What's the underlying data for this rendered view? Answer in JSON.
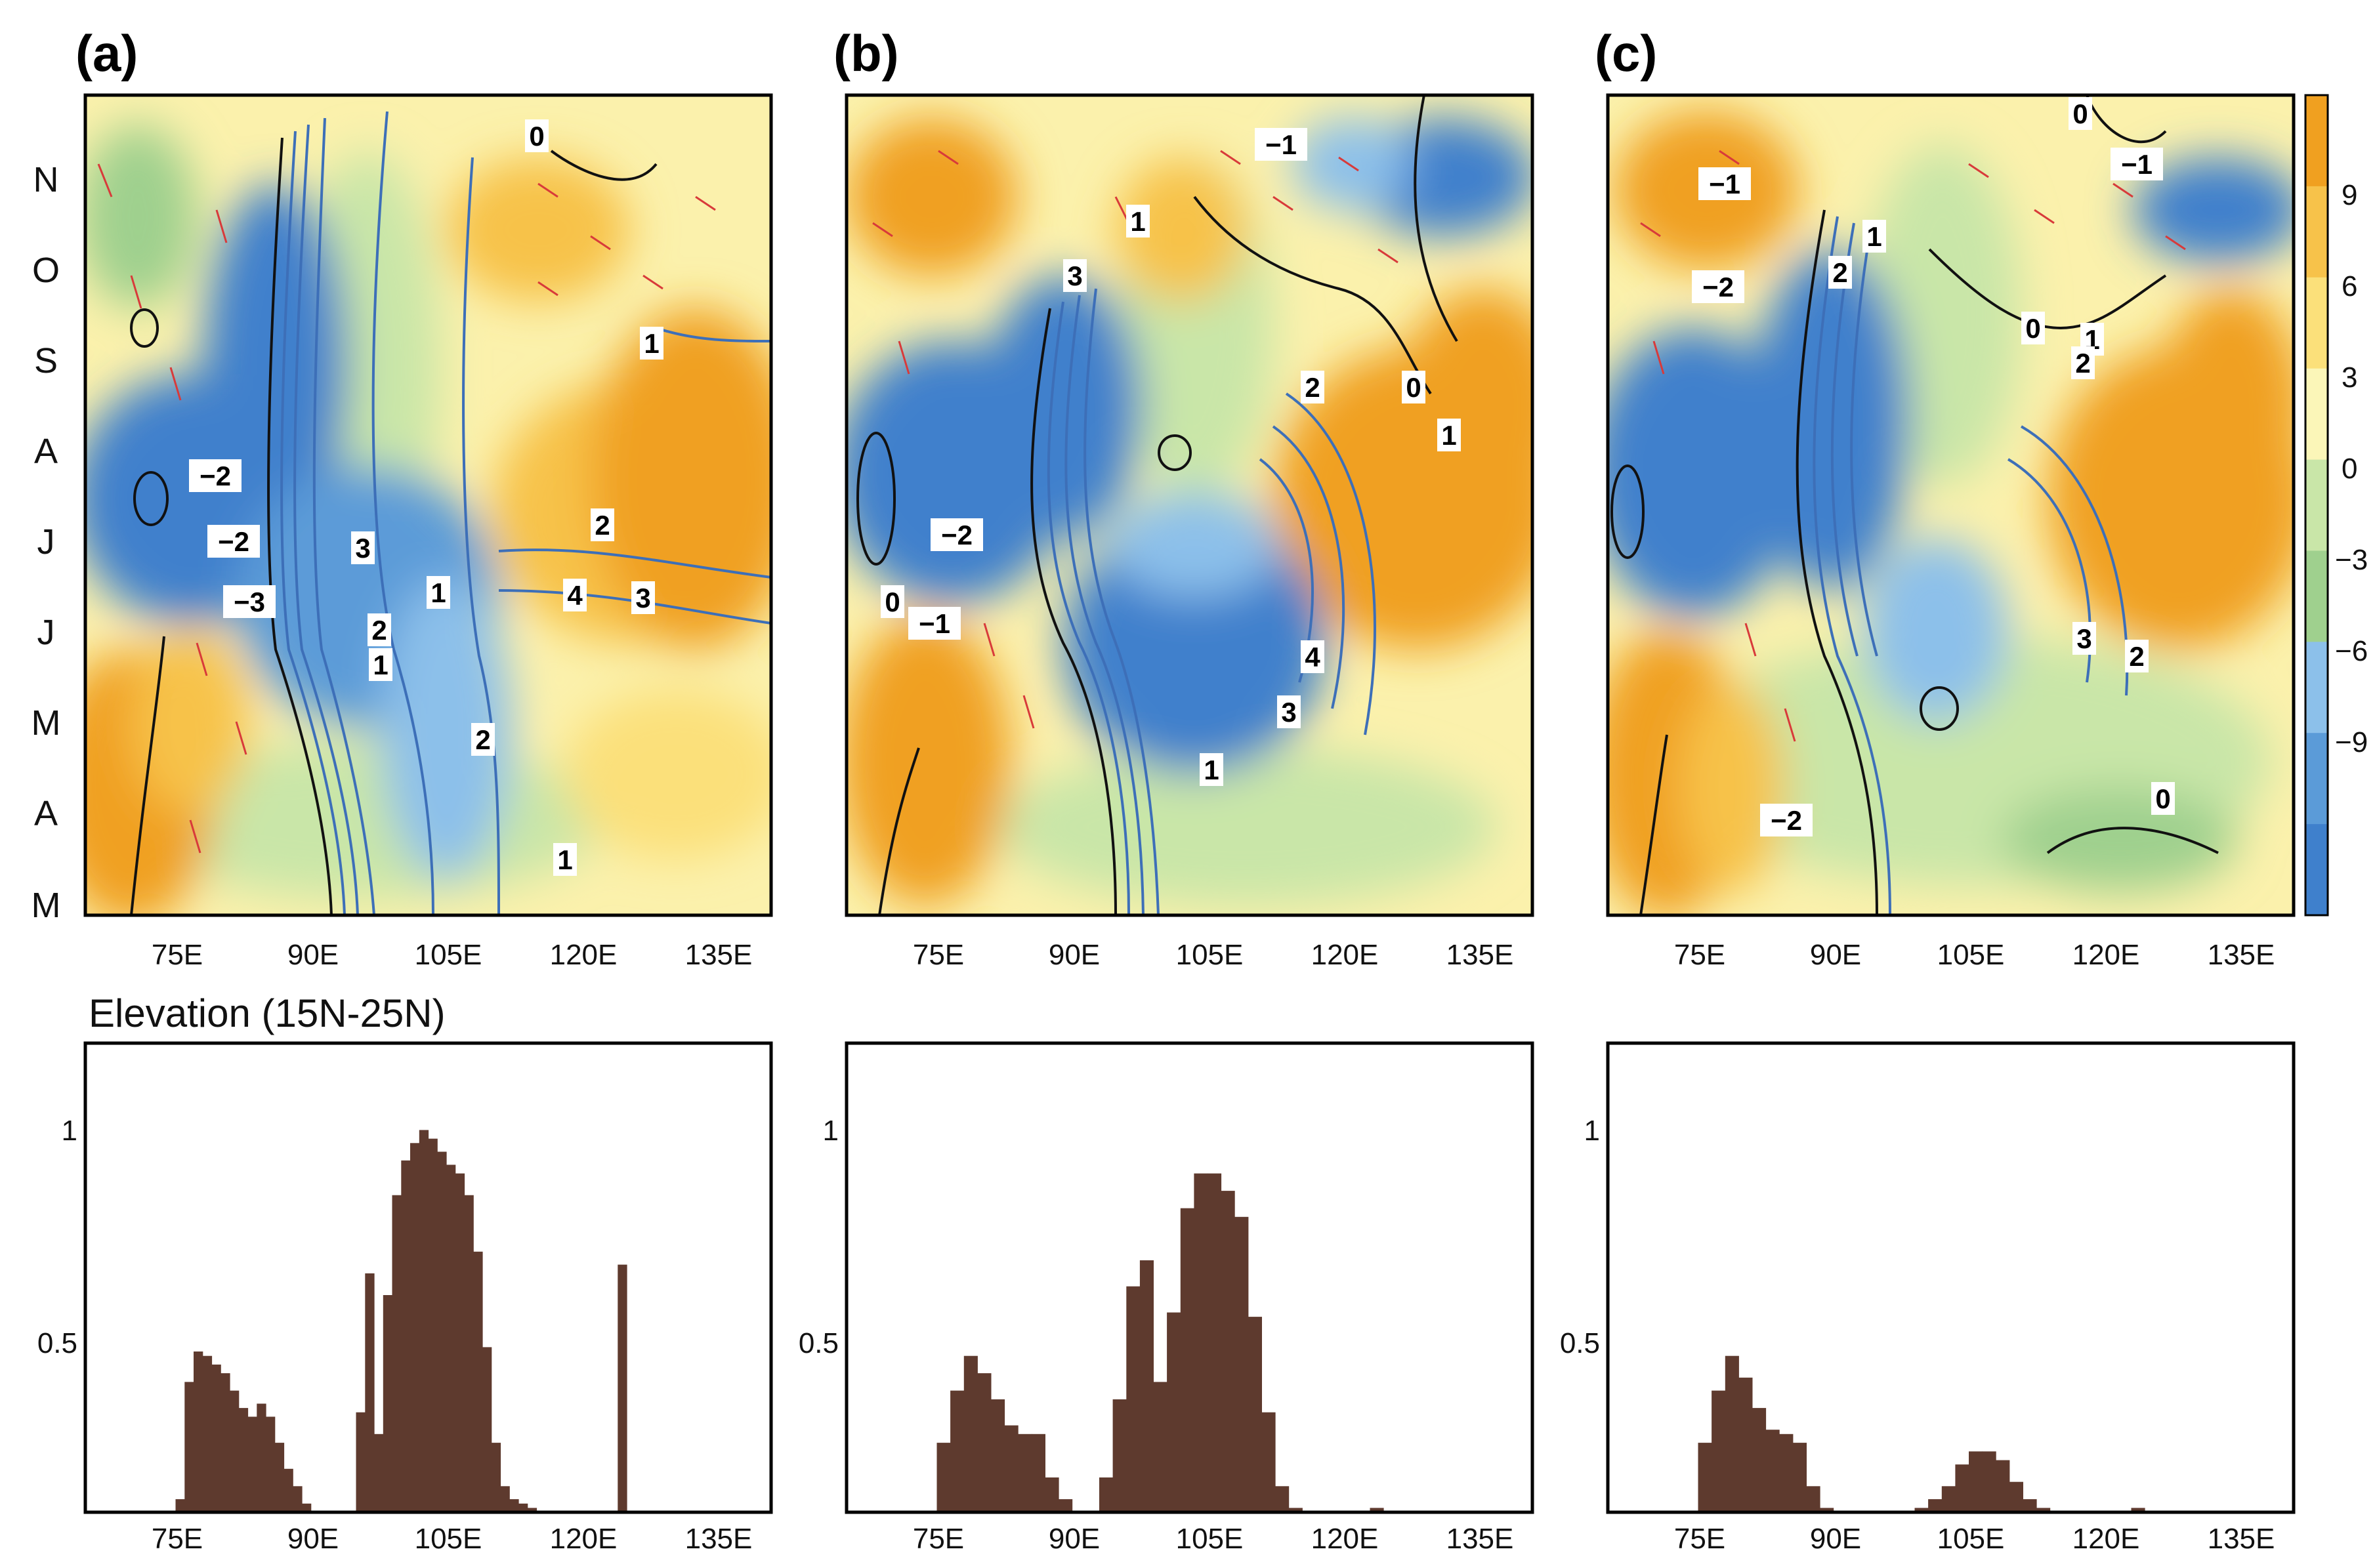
{
  "figure": {
    "panel_labels": [
      "(a)",
      "(b)",
      "(c)"
    ],
    "elevation_title": "Elevation (15N-25N)",
    "months": [
      "M",
      "A",
      "M",
      "J",
      "J",
      "A",
      "S",
      "O",
      "N"
    ],
    "lon_ticks": [
      "75E",
      "90E",
      "105E",
      "120E",
      "135E"
    ],
    "colorbar": {
      "ticks": [
        "9",
        "6",
        "3",
        "0",
        "−3",
        "−6",
        "−9"
      ],
      "colors": [
        "#f0a020",
        "#f7c24a",
        "#fbe07a",
        "#fbf6b8",
        "#c9e6a8",
        "#9fd08e",
        "#8cc0ea",
        "#5b9bd8",
        "#3f80cc"
      ]
    }
  },
  "contour_labels": {
    "a": [
      "0",
      "1",
      "−2",
      "−2",
      "−3",
      "3",
      "1",
      "2",
      "1",
      "2",
      "4",
      "3",
      "2",
      "1"
    ],
    "b": [
      "−1",
      "1",
      "3",
      "2",
      "0",
      "1",
      "−2",
      "0",
      "−1",
      "4",
      "3",
      "1"
    ],
    "c": [
      "0",
      "−1",
      "−1",
      "1",
      "−2",
      "2",
      "0",
      "1",
      "2",
      "3",
      "2",
      "−2",
      "0"
    ]
  },
  "chart_data": [
    {
      "type": "heatmap",
      "panel": "(a)",
      "xlabel": "",
      "ylabel": "",
      "x_ticks": [
        "75E",
        "90E",
        "105E",
        "120E",
        "135E"
      ],
      "xlim": [
        62,
        138
      ],
      "y_ticks": [
        "M",
        "A",
        "M",
        "J",
        "J",
        "A",
        "S",
        "O",
        "N"
      ],
      "colorbar_ticks": [
        -9,
        -6,
        -3,
        0,
        3,
        6,
        9
      ],
      "contour_labels": [
        "0",
        "1",
        "-2",
        "-2",
        "-3",
        "3",
        "1",
        "2",
        "1",
        "2",
        "4",
        "3",
        "2",
        "1"
      ]
    },
    {
      "type": "heatmap",
      "panel": "(b)",
      "xlabel": "",
      "ylabel": "",
      "x_ticks": [
        "75E",
        "90E",
        "105E",
        "120E",
        "135E"
      ],
      "xlim": [
        62,
        138
      ],
      "y_ticks": [
        "M",
        "A",
        "M",
        "J",
        "J",
        "A",
        "S",
        "O",
        "N"
      ],
      "colorbar_ticks": [
        -9,
        -6,
        -3,
        0,
        3,
        6,
        9
      ],
      "contour_labels": [
        "-1",
        "1",
        "3",
        "2",
        "0",
        "1",
        "-2",
        "0",
        "-1",
        "4",
        "3",
        "1"
      ]
    },
    {
      "type": "heatmap",
      "panel": "(c)",
      "xlabel": "",
      "ylabel": "",
      "x_ticks": [
        "75E",
        "90E",
        "105E",
        "120E",
        "135E"
      ],
      "xlim": [
        62,
        138
      ],
      "y_ticks": [
        "M",
        "A",
        "M",
        "J",
        "J",
        "A",
        "S",
        "O",
        "N"
      ],
      "colorbar_ticks": [
        -9,
        -6,
        -3,
        0,
        3,
        6,
        9
      ],
      "contour_labels": [
        "0",
        "-1",
        "-1",
        "1",
        "-2",
        "2",
        "0",
        "1",
        "2",
        "3",
        "2",
        "-2",
        "0"
      ]
    },
    {
      "type": "bar",
      "panel": "(a) elevation",
      "title": "Elevation (15N-25N)",
      "xlim": [
        62,
        138
      ],
      "ylim": [
        0.12,
        1.2
      ],
      "x_ticks": [
        "75E",
        "90E",
        "105E",
        "120E",
        "135E"
      ],
      "y_ticks": [
        "0.5",
        "1"
      ],
      "x": [
        72,
        73,
        74,
        75,
        76,
        77,
        78,
        79,
        80,
        81,
        82,
        83,
        84,
        85,
        86,
        87,
        88,
        89,
        90,
        91,
        92,
        93,
        94,
        95,
        96,
        97,
        98,
        99,
        100,
        101,
        102,
        103,
        104,
        105,
        106,
        107,
        108,
        109,
        110,
        111,
        112,
        113,
        114,
        115,
        116,
        117,
        118,
        119,
        120,
        121,
        122
      ],
      "values": [
        0.15,
        0.42,
        0.49,
        0.48,
        0.46,
        0.44,
        0.4,
        0.36,
        0.34,
        0.37,
        0.34,
        0.28,
        0.22,
        0.18,
        0.14,
        0.12,
        0.12,
        0.12,
        0.12,
        0.12,
        0.35,
        0.67,
        0.3,
        0.62,
        0.85,
        0.93,
        0.97,
        1.0,
        0.98,
        0.95,
        0.92,
        0.9,
        0.85,
        0.72,
        0.5,
        0.28,
        0.18,
        0.15,
        0.14,
        0.13,
        0.12,
        0.12,
        0.12,
        0.12,
        0.12,
        0.12,
        0.12,
        0.12,
        0.12,
        0.69,
        0.12
      ]
    },
    {
      "type": "bar",
      "panel": "(b) elevation",
      "xlim": [
        62,
        138
      ],
      "ylim": [
        0.12,
        1.2
      ],
      "x_ticks": [
        "75E",
        "90E",
        "105E",
        "120E",
        "135E"
      ],
      "y_ticks": [
        "0.5",
        "1"
      ],
      "x": [
        72,
        73.5,
        75,
        76.5,
        78,
        79.5,
        81,
        82.5,
        84,
        85.5,
        87,
        88.5,
        90,
        91.5,
        93,
        94.5,
        96,
        97.5,
        99,
        100.5,
        102,
        103.5,
        105,
        106.5,
        108,
        109.5,
        111,
        112.5,
        114,
        115.5,
        117,
        118.5,
        120,
        121.5
      ],
      "values": [
        0.28,
        0.4,
        0.48,
        0.44,
        0.38,
        0.32,
        0.3,
        0.3,
        0.2,
        0.15,
        0.12,
        0.12,
        0.2,
        0.38,
        0.64,
        0.7,
        0.42,
        0.58,
        0.82,
        0.9,
        0.9,
        0.86,
        0.8,
        0.57,
        0.35,
        0.18,
        0.13,
        0.12,
        0.12,
        0.12,
        0.12,
        0.12,
        0.13,
        0.12
      ]
    },
    {
      "type": "bar",
      "panel": "(c) elevation",
      "xlim": [
        62,
        138
      ],
      "ylim": [
        0.12,
        1.2
      ],
      "x_ticks": [
        "75E",
        "90E",
        "105E",
        "120E",
        "135E"
      ],
      "y_ticks": [
        "0.5",
        "1"
      ],
      "x": [
        72,
        73.5,
        75,
        76.5,
        78,
        79.5,
        81,
        82.5,
        84,
        85.5,
        87,
        88.5,
        90,
        91.5,
        93,
        94.5,
        96,
        97.5,
        99,
        100.5,
        102,
        103.5,
        105,
        106.5,
        108,
        109.5,
        111,
        112.5,
        114,
        115.5,
        117,
        118.5,
        120,
        121.5
      ],
      "values": [
        0.28,
        0.4,
        0.48,
        0.43,
        0.36,
        0.31,
        0.3,
        0.28,
        0.18,
        0.13,
        0.12,
        0.12,
        0.12,
        0.12,
        0.12,
        0.12,
        0.13,
        0.15,
        0.18,
        0.23,
        0.26,
        0.26,
        0.24,
        0.19,
        0.15,
        0.13,
        0.12,
        0.12,
        0.12,
        0.12,
        0.12,
        0.12,
        0.13,
        0.12
      ]
    }
  ]
}
